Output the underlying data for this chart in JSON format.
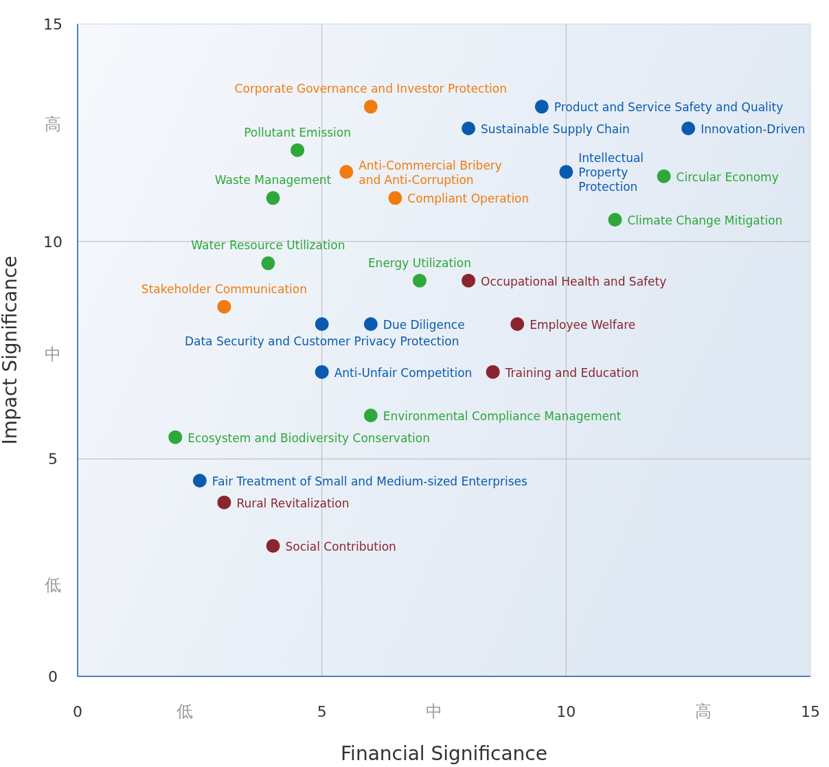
{
  "chart_data": {
    "type": "scatter",
    "xlabel": "Financial Significance",
    "ylabel": "Impact Significance",
    "xlim": [
      0,
      15
    ],
    "ylim": [
      0,
      15
    ],
    "xticks": [
      0,
      {
        "value": 2.2,
        "label": "低"
      },
      5,
      {
        "value": 7.3,
        "label": "中"
      },
      10,
      {
        "value": 12.8,
        "label": "高"
      },
      15
    ],
    "yticks": [
      0,
      {
        "value": 2.1,
        "label": "低"
      },
      5,
      {
        "value": 7.4,
        "label": "中"
      },
      10,
      {
        "value": 12.7,
        "label": "高"
      },
      15
    ],
    "grid": true,
    "marker": "circle",
    "series": [
      {
        "color": "#f07c10",
        "x": [
          6.0,
          5.5,
          6.5,
          3.0
        ],
        "values": [
          13.1,
          11.6,
          11.0,
          8.5
        ]
      },
      {
        "color": "#2ea83a",
        "x": [
          4.5,
          4.0,
          12.0,
          11.0,
          3.9,
          7.0,
          6.0,
          2.0
        ],
        "values": [
          12.1,
          11.0,
          11.5,
          10.5,
          9.5,
          9.1,
          6.0,
          5.5
        ]
      },
      {
        "color": "#0a5bb0",
        "x": [
          9.5,
          8.0,
          12.5,
          10.0,
          5.0,
          6.0,
          5.0,
          2.5
        ],
        "values": [
          13.1,
          12.6,
          12.6,
          11.6,
          8.1,
          8.1,
          7.0,
          4.5
        ]
      },
      {
        "color": "#8a2530",
        "x": [
          8.0,
          9.0,
          8.5,
          3.0,
          4.0
        ],
        "values": [
          9.1,
          8.1,
          7.0,
          4.0,
          3.0
        ]
      }
    ],
    "annotations": [
      {
        "text": "Corporate Governance and Investor Protection",
        "x": 6.0,
        "y": 13.1
      },
      {
        "text": "Anti-Commercial Bribery and Anti-Corruption",
        "x": 5.5,
        "y": 11.6
      },
      {
        "text": "Compliant Operation",
        "x": 6.5,
        "y": 11.0
      },
      {
        "text": "Stakeholder Communication",
        "x": 3.0,
        "y": 8.5
      },
      {
        "text": "Pollutant Emission",
        "x": 4.5,
        "y": 12.1
      },
      {
        "text": "Waste Management",
        "x": 4.0,
        "y": 11.0
      },
      {
        "text": "Circular Economy",
        "x": 12.0,
        "y": 11.5
      },
      {
        "text": "Climate Change Mitigation",
        "x": 11.0,
        "y": 10.5
      },
      {
        "text": "Water Resource Utilization",
        "x": 3.9,
        "y": 9.5
      },
      {
        "text": "Energy Utilization",
        "x": 7.0,
        "y": 9.1
      },
      {
        "text": "Environmental Compliance Management",
        "x": 6.0,
        "y": 6.0
      },
      {
        "text": "Ecosystem and Biodiversity Conservation",
        "x": 2.0,
        "y": 5.5
      },
      {
        "text": "Product and Service Safety and Quality",
        "x": 9.5,
        "y": 13.1
      },
      {
        "text": "Sustainable Supply Chain",
        "x": 8.0,
        "y": 12.6
      },
      {
        "text": "Innovation-Driven",
        "x": 12.5,
        "y": 12.6
      },
      {
        "text": "Intellectual Property Protection",
        "x": 10.0,
        "y": 11.6
      },
      {
        "text": "Data Security and Customer Privacy Protection",
        "x": 5.0,
        "y": 8.1
      },
      {
        "text": "Due Diligence",
        "x": 6.0,
        "y": 8.1
      },
      {
        "text": "Anti-Unfair Competition",
        "x": 5.0,
        "y": 7.0
      },
      {
        "text": "Fair Treatment of Small and Medium-sized Enterprises",
        "x": 2.5,
        "y": 4.5
      },
      {
        "text": "Occupational Health and Safety",
        "x": 8.0,
        "y": 9.1
      },
      {
        "text": "Employee Welfare",
        "x": 9.0,
        "y": 8.1
      },
      {
        "text": "Training and Education",
        "x": 8.5,
        "y": 7.0
      },
      {
        "text": "Rural Revitalization",
        "x": 3.0,
        "y": 4.0
      },
      {
        "text": "Social Contribution",
        "x": 4.0,
        "y": 3.0
      }
    ]
  }
}
